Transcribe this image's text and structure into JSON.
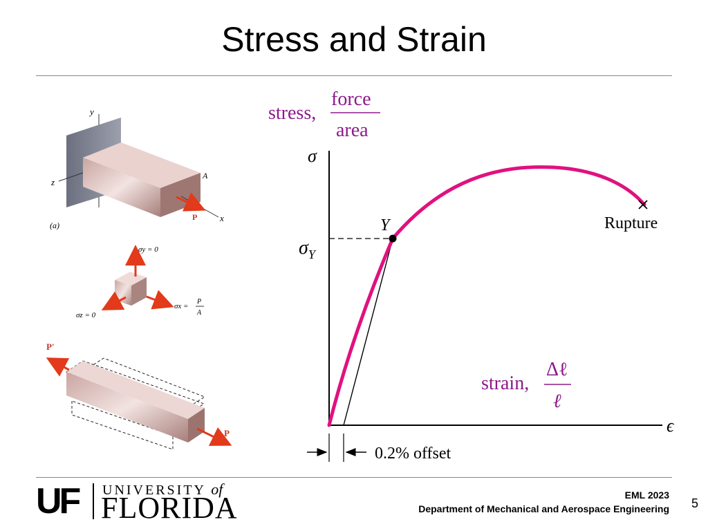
{
  "slide": {
    "title": "Stress and Strain",
    "page_number": "5"
  },
  "footer": {
    "course": "EML 2023",
    "department": "Department of Mechanical and Aerospace Engineering",
    "logo": {
      "uf": "UF",
      "university_of": "UNIVERSITY",
      "of": "of",
      "florida": "FLORIDA"
    }
  },
  "diagram": {
    "stress_label": "stress,",
    "stress_num": "force",
    "stress_den": "area",
    "strain_label": "strain,",
    "strain_num": "Δℓ",
    "strain_den": "ℓ",
    "sigma_axis": "σ",
    "epsilon_axis": "ϵ",
    "sigma_y": "σ",
    "sigma_y_sub": "Y",
    "yield_point": "Y",
    "rupture": "Rupture",
    "offset": "0.2% offset",
    "curve_color": "#e0117f",
    "label_color": "#8b1a8b"
  },
  "figures": {
    "a_label": "(a)",
    "axis_y": "y",
    "axis_z": "z",
    "axis_x": "x",
    "area_label": "A",
    "force_p": "P",
    "force_p_prime": "P′",
    "sigma_y_zero": "σy = 0",
    "sigma_z_zero": "σz = 0",
    "sigma_x": "σx =",
    "p_over_a_num": "P",
    "p_over_a_den": "A"
  }
}
